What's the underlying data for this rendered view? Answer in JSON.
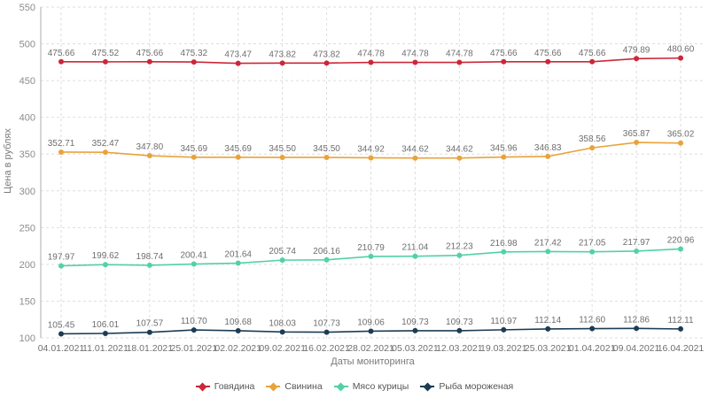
{
  "chart_data": {
    "type": "line",
    "title": "",
    "xlabel": "Даты мониторинга",
    "ylabel": "Цена в рублях",
    "ylim": [
      100,
      550
    ],
    "ytick_step": 50,
    "grid": "dashed",
    "legend_position": "bottom",
    "categories": [
      "04.01.2021",
      "11.01.2021",
      "18.01.2021",
      "25.01.2021",
      "02.02.2021",
      "09.02.2021",
      "16.02.2021",
      "28.02.2021",
      "05.03.2021",
      "12.03.2021",
      "19.03.2021",
      "25.03.2021",
      "01.04.2021",
      "09.04.2021",
      "16.04.2021"
    ],
    "series": [
      {
        "name": "Говядина",
        "color": "#cb2738",
        "values": [
          475.66,
          475.52,
          475.66,
          475.32,
          473.47,
          473.82,
          473.82,
          474.78,
          474.78,
          474.78,
          475.66,
          475.66,
          475.66,
          479.89,
          480.6
        ]
      },
      {
        "name": "Свинина",
        "color": "#e8a33c",
        "values": [
          352.71,
          352.47,
          347.8,
          345.69,
          345.69,
          345.5,
          345.5,
          344.92,
          344.62,
          344.62,
          345.96,
          346.83,
          358.56,
          365.87,
          365.02
        ]
      },
      {
        "name": "Мясо курицы",
        "color": "#52d1a6",
        "values": [
          197.97,
          199.62,
          198.74,
          200.41,
          201.64,
          205.74,
          206.16,
          210.79,
          211.04,
          212.23,
          216.98,
          217.42,
          217.05,
          217.97,
          220.96
        ]
      },
      {
        "name": "Рыба мороженая",
        "color": "#1c3c54",
        "values": [
          105.45,
          106.01,
          107.57,
          110.7,
          109.68,
          108.03,
          107.73,
          109.06,
          109.73,
          109.73,
          110.97,
          112.14,
          112.6,
          112.86,
          112.11
        ]
      }
    ]
  },
  "colors": {
    "grid": "#dedede",
    "axis": "#c4c4c4",
    "tick_text": "#8c8c8c",
    "data_label_text": "#6e6e6e"
  }
}
